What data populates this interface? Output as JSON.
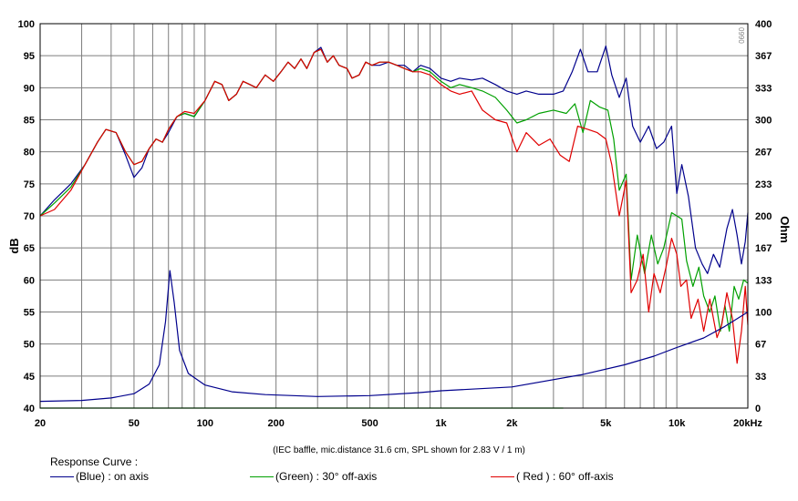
{
  "chart_data": {
    "type": "line",
    "xlabel_unit": "kHz",
    "ylabel": "dB",
    "y2label": "Ohm",
    "xscale": "log",
    "xlim": [
      20,
      20000
    ],
    "ylim": [
      40,
      100
    ],
    "y2lim": [
      0,
      400
    ],
    "x_ticks": [
      20,
      50,
      100,
      200,
      500,
      1000,
      2000,
      5000,
      10000,
      20000
    ],
    "x_tick_labels": [
      "20",
      "50",
      "100",
      "200",
      "500",
      "1k",
      "2k",
      "5k",
      "10k",
      "20kHz"
    ],
    "y_ticks": [
      40,
      45,
      50,
      55,
      60,
      65,
      70,
      75,
      80,
      85,
      90,
      95,
      100
    ],
    "y2_ticks": [
      0,
      33,
      67,
      100,
      133,
      167,
      200,
      233,
      267,
      300,
      333,
      367,
      400
    ],
    "grid": true,
    "corner_tag": "0990",
    "note": "(IEC baffle, mic.distance 31.6 cm, SPL shown for 2.83 V / 1 m)",
    "legend_title": "Response Curve :",
    "series": [
      {
        "name": "(Blue)  : on axis",
        "color": "#00008c",
        "axis": "left",
        "points": [
          [
            20,
            70
          ],
          [
            23,
            72.5
          ],
          [
            27,
            75
          ],
          [
            31,
            78
          ],
          [
            35,
            81.5
          ],
          [
            38,
            83.5
          ],
          [
            42,
            83
          ],
          [
            46,
            79.5
          ],
          [
            50,
            76
          ],
          [
            54,
            77.5
          ],
          [
            58,
            80.5
          ],
          [
            62,
            82
          ],
          [
            66,
            81.5
          ],
          [
            70,
            83
          ],
          [
            76,
            85.5
          ],
          [
            82,
            86
          ],
          [
            90,
            85.5
          ],
          [
            100,
            88
          ],
          [
            110,
            91
          ],
          [
            118,
            90.5
          ],
          [
            126,
            88
          ],
          [
            136,
            89
          ],
          [
            145,
            91
          ],
          [
            155,
            90.5
          ],
          [
            165,
            90
          ],
          [
            180,
            92
          ],
          [
            195,
            91
          ],
          [
            210,
            92.5
          ],
          [
            225,
            94
          ],
          [
            240,
            93
          ],
          [
            255,
            94.5
          ],
          [
            270,
            93
          ],
          [
            290,
            95.5
          ],
          [
            310,
            96.3
          ],
          [
            330,
            94
          ],
          [
            350,
            95
          ],
          [
            370,
            93.5
          ],
          [
            400,
            93
          ],
          [
            420,
            91.5
          ],
          [
            450,
            92
          ],
          [
            480,
            94
          ],
          [
            510,
            93.5
          ],
          [
            550,
            93.5
          ],
          [
            600,
            94
          ],
          [
            650,
            93.5
          ],
          [
            700,
            93.5
          ],
          [
            760,
            92.5
          ],
          [
            820,
            93.5
          ],
          [
            900,
            93
          ],
          [
            1000,
            91.5
          ],
          [
            1100,
            91
          ],
          [
            1200,
            91.5
          ],
          [
            1350,
            91.2
          ],
          [
            1500,
            91.5
          ],
          [
            1700,
            90.5
          ],
          [
            1900,
            89.5
          ],
          [
            2100,
            89
          ],
          [
            2300,
            89.5
          ],
          [
            2600,
            89
          ],
          [
            3000,
            89
          ],
          [
            3300,
            89.5
          ],
          [
            3600,
            92.5
          ],
          [
            3900,
            96
          ],
          [
            4200,
            92.5
          ],
          [
            4600,
            92.5
          ],
          [
            5000,
            96.5
          ],
          [
            5300,
            92
          ],
          [
            5700,
            88.5
          ],
          [
            6100,
            91.5
          ],
          [
            6500,
            84
          ],
          [
            7000,
            81.5
          ],
          [
            7600,
            84
          ],
          [
            8200,
            80.5
          ],
          [
            8800,
            81.5
          ],
          [
            9500,
            84
          ],
          [
            10000,
            73.5
          ],
          [
            10500,
            78
          ],
          [
            11200,
            73
          ],
          [
            12000,
            65
          ],
          [
            12800,
            62.5
          ],
          [
            13500,
            61
          ],
          [
            14300,
            64
          ],
          [
            15200,
            62
          ],
          [
            16300,
            68
          ],
          [
            17200,
            71
          ],
          [
            18000,
            67
          ],
          [
            18800,
            62.5
          ],
          [
            19500,
            66
          ],
          [
            20000,
            70.5
          ]
        ]
      },
      {
        "name": "(Green) : 30° off-axis",
        "color": "#00a000",
        "axis": "left",
        "points": [
          [
            20,
            70
          ],
          [
            23,
            72
          ],
          [
            27,
            74.5
          ],
          [
            31,
            78
          ],
          [
            35,
            81.5
          ],
          [
            38,
            83.5
          ],
          [
            42,
            83
          ],
          [
            46,
            80
          ],
          [
            50,
            78
          ],
          [
            54,
            78.5
          ],
          [
            58,
            80.5
          ],
          [
            62,
            82
          ],
          [
            66,
            81.5
          ],
          [
            70,
            83.5
          ],
          [
            76,
            85.5
          ],
          [
            82,
            86
          ],
          [
            90,
            85.5
          ],
          [
            100,
            88
          ],
          [
            110,
            91
          ],
          [
            118,
            90.5
          ],
          [
            126,
            88
          ],
          [
            136,
            89
          ],
          [
            145,
            91
          ],
          [
            155,
            90.5
          ],
          [
            165,
            90
          ],
          [
            180,
            92
          ],
          [
            195,
            91
          ],
          [
            210,
            92.5
          ],
          [
            225,
            94
          ],
          [
            240,
            93
          ],
          [
            255,
            94.5
          ],
          [
            270,
            93
          ],
          [
            290,
            95.5
          ],
          [
            310,
            96
          ],
          [
            330,
            94
          ],
          [
            350,
            95
          ],
          [
            370,
            93.5
          ],
          [
            400,
            93
          ],
          [
            420,
            91.5
          ],
          [
            450,
            92
          ],
          [
            480,
            94
          ],
          [
            510,
            93.5
          ],
          [
            550,
            94
          ],
          [
            600,
            94
          ],
          [
            650,
            93.5
          ],
          [
            700,
            93
          ],
          [
            760,
            92.5
          ],
          [
            820,
            93
          ],
          [
            900,
            92.5
          ],
          [
            1000,
            91
          ],
          [
            1100,
            90
          ],
          [
            1200,
            90.5
          ],
          [
            1350,
            90
          ],
          [
            1500,
            89.5
          ],
          [
            1700,
            88.5
          ],
          [
            1900,
            86.5
          ],
          [
            2100,
            84.5
          ],
          [
            2300,
            85
          ],
          [
            2600,
            86
          ],
          [
            3000,
            86.5
          ],
          [
            3400,
            86
          ],
          [
            3700,
            87.5
          ],
          [
            4000,
            83
          ],
          [
            4300,
            88
          ],
          [
            4700,
            87
          ],
          [
            5100,
            86.5
          ],
          [
            5400,
            82
          ],
          [
            5700,
            74
          ],
          [
            6100,
            76.5
          ],
          [
            6400,
            60
          ],
          [
            6800,
            67
          ],
          [
            7300,
            61
          ],
          [
            7800,
            67
          ],
          [
            8300,
            62.5
          ],
          [
            8800,
            65
          ],
          [
            9500,
            70.5
          ],
          [
            10000,
            70
          ],
          [
            10500,
            69.5
          ],
          [
            11000,
            63
          ],
          [
            11700,
            59
          ],
          [
            12400,
            62
          ],
          [
            13000,
            57.5
          ],
          [
            13800,
            55
          ],
          [
            14500,
            57.5
          ],
          [
            15300,
            52
          ],
          [
            16000,
            56
          ],
          [
            16700,
            52
          ],
          [
            17500,
            59
          ],
          [
            18300,
            57
          ],
          [
            19200,
            60
          ],
          [
            20000,
            59.5
          ]
        ]
      },
      {
        "name": "( Red ) : 60° off-axis",
        "color": "#e00000",
        "axis": "left",
        "points": [
          [
            20,
            70
          ],
          [
            23,
            71
          ],
          [
            27,
            74
          ],
          [
            31,
            78
          ],
          [
            35,
            81.5
          ],
          [
            38,
            83.5
          ],
          [
            42,
            83
          ],
          [
            46,
            80
          ],
          [
            50,
            78
          ],
          [
            54,
            78.5
          ],
          [
            58,
            80.5
          ],
          [
            62,
            82
          ],
          [
            66,
            81.5
          ],
          [
            70,
            83.5
          ],
          [
            76,
            85.5
          ],
          [
            82,
            86.3
          ],
          [
            90,
            86
          ],
          [
            100,
            88
          ],
          [
            110,
            91
          ],
          [
            118,
            90.5
          ],
          [
            126,
            88
          ],
          [
            136,
            89
          ],
          [
            145,
            91
          ],
          [
            155,
            90.5
          ],
          [
            165,
            90
          ],
          [
            180,
            92
          ],
          [
            195,
            91
          ],
          [
            210,
            92.5
          ],
          [
            225,
            94
          ],
          [
            240,
            93
          ],
          [
            255,
            94.5
          ],
          [
            270,
            93
          ],
          [
            290,
            95.5
          ],
          [
            310,
            96
          ],
          [
            330,
            94
          ],
          [
            350,
            95
          ],
          [
            370,
            93.5
          ],
          [
            400,
            93
          ],
          [
            420,
            91.5
          ],
          [
            450,
            92
          ],
          [
            480,
            94
          ],
          [
            510,
            93.5
          ],
          [
            550,
            94
          ],
          [
            600,
            94
          ],
          [
            650,
            93.5
          ],
          [
            700,
            93
          ],
          [
            760,
            92.5
          ],
          [
            820,
            92.5
          ],
          [
            900,
            92
          ],
          [
            1000,
            90.5
          ],
          [
            1100,
            89.5
          ],
          [
            1200,
            89
          ],
          [
            1350,
            89.5
          ],
          [
            1500,
            86.5
          ],
          [
            1700,
            85
          ],
          [
            1900,
            84.5
          ],
          [
            2100,
            80
          ],
          [
            2300,
            83
          ],
          [
            2600,
            81
          ],
          [
            2900,
            82
          ],
          [
            3200,
            79.5
          ],
          [
            3500,
            78.5
          ],
          [
            3800,
            84
          ],
          [
            4200,
            83.5
          ],
          [
            4600,
            83
          ],
          [
            5000,
            82
          ],
          [
            5300,
            78
          ],
          [
            5700,
            70
          ],
          [
            6100,
            75.5
          ],
          [
            6400,
            58
          ],
          [
            6800,
            60
          ],
          [
            7200,
            64
          ],
          [
            7600,
            55
          ],
          [
            8000,
            61
          ],
          [
            8500,
            58
          ],
          [
            9000,
            62
          ],
          [
            9500,
            66.5
          ],
          [
            10000,
            64
          ],
          [
            10400,
            59
          ],
          [
            11000,
            60
          ],
          [
            11500,
            54
          ],
          [
            12300,
            57
          ],
          [
            13000,
            52
          ],
          [
            13800,
            57
          ],
          [
            14800,
            51
          ],
          [
            15500,
            53
          ],
          [
            16300,
            58
          ],
          [
            17200,
            54
          ],
          [
            18000,
            47
          ],
          [
            18800,
            52
          ],
          [
            19500,
            59
          ],
          [
            20000,
            53
          ]
        ]
      },
      {
        "name": "",
        "color": "#00008c",
        "axis": "right",
        "points": [
          [
            20,
            7
          ],
          [
            30,
            8
          ],
          [
            40,
            10.5
          ],
          [
            50,
            15
          ],
          [
            58,
            25
          ],
          [
            64,
            45
          ],
          [
            68,
            90
          ],
          [
            71,
            143
          ],
          [
            74,
            110
          ],
          [
            78,
            60
          ],
          [
            85,
            36
          ],
          [
            100,
            24
          ],
          [
            130,
            17
          ],
          [
            180,
            14
          ],
          [
            300,
            12
          ],
          [
            500,
            13
          ],
          [
            800,
            16
          ],
          [
            1000,
            18
          ],
          [
            2000,
            22
          ],
          [
            4000,
            35
          ],
          [
            6000,
            45
          ],
          [
            8000,
            54
          ],
          [
            10000,
            63
          ],
          [
            13000,
            73
          ],
          [
            16000,
            85
          ],
          [
            20000,
            100
          ]
        ]
      },
      {
        "name": "",
        "color": "#00c000",
        "axis": "left",
        "points": [
          [
            20,
            40
          ],
          [
            3300,
            40
          ]
        ]
      }
    ]
  }
}
